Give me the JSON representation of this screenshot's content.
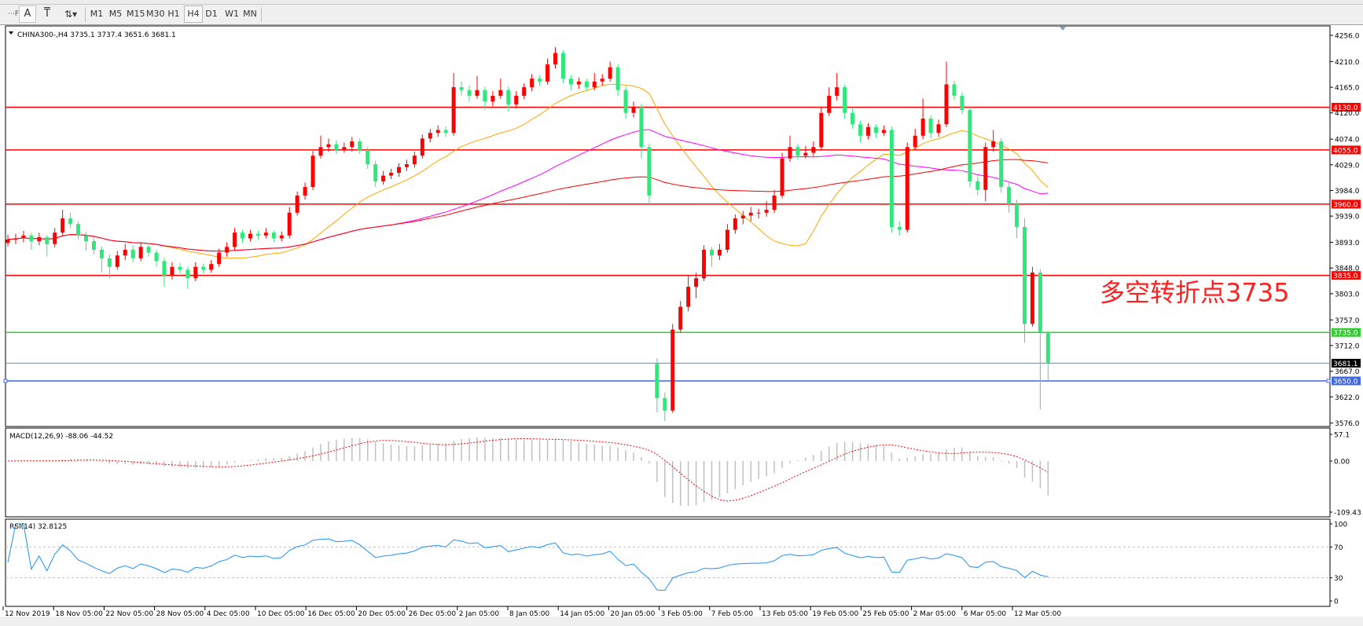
{
  "toolbar": {
    "tools": [
      {
        "name": "grid-f-icon",
        "glyph": "⋯F"
      },
      {
        "name": "text-icon",
        "glyph": "A"
      },
      {
        "name": "text-label-icon",
        "glyph": "T"
      },
      {
        "name": "arrows-icon",
        "glyph": "⇅▾"
      }
    ],
    "timeframes": [
      "M1",
      "M5",
      "M15",
      "M30",
      "H1",
      "H4",
      "D1",
      "W1",
      "MN"
    ],
    "selected_timeframe": "H4"
  },
  "chart_data": {
    "type": "candlestick",
    "title": "CHINA300-,H4  3735.1 3737.4 3651.6 3681.1",
    "symbol": "CHINA300-",
    "timeframe": "H4",
    "last_ohlc": [
      3735.1,
      3737.4,
      3651.6,
      3681.1
    ],
    "colors": {
      "bull": "#ff0000",
      "bear": "#2ee87a",
      "ma_fast": "#ffa500",
      "ma_mid": "#ff00ff",
      "ma_slow": "#ff0000"
    },
    "price_axis": {
      "range": [
        3576,
        4256
      ],
      "ticks": [
        4256.0,
        4210.0,
        4165.0,
        4120.0,
        4074.0,
        4029.0,
        3984.0,
        3939.0,
        3893.0,
        3848.0,
        3803.0,
        3757.0,
        3712.0,
        3667.0,
        3622.0,
        3576.0
      ]
    },
    "x_labels": [
      "12 Nov 2019",
      "18 Nov 05:00",
      "22 Nov 05:00",
      "28 Nov 05:00",
      "4 Dec 05:00",
      "10 Dec 05:00",
      "16 Dec 05:00",
      "20 Dec 05:00",
      "26 Dec 05:00",
      "2 Jan 05:00",
      "8 Jan 05:00",
      "14 Jan 05:00",
      "20 Jan 05:00",
      "3 Feb 05:00",
      "7 Feb 05:00",
      "13 Feb 05:00",
      "19 Feb 05:00",
      "25 Feb 05:00",
      "2 Mar 05:00",
      "6 Mar 05:00",
      "12 Mar 05:00"
    ],
    "horizontal_lines": [
      {
        "price": 4130.0,
        "label": "4130.0",
        "color": "#ff0000"
      },
      {
        "price": 4055.0,
        "label": "4055.0",
        "color": "#ff0000"
      },
      {
        "price": 3960.0,
        "label": "3960.0",
        "color": "#ff0000"
      },
      {
        "price": 3835.0,
        "label": "3835.0",
        "color": "#ff0000"
      },
      {
        "price": 3735.0,
        "label": "3735.0",
        "color": "#32cd32"
      },
      {
        "price": 3681.1,
        "label": "3681.1",
        "color": "#778899",
        "tag_color": "#000000"
      },
      {
        "price": 3650.0,
        "label": "3650.0",
        "color": "#4169e1"
      }
    ],
    "annotation": {
      "text": "多空转折点3735",
      "color": "#ff2020",
      "price": 3790
    },
    "candles": [
      [
        3892,
        3906,
        3886,
        3898
      ],
      [
        3898,
        3908,
        3890,
        3900
      ],
      [
        3900,
        3913,
        3893,
        3905
      ],
      [
        3905,
        3910,
        3880,
        3895
      ],
      [
        3895,
        3910,
        3888,
        3902
      ],
      [
        3902,
        3906,
        3868,
        3890
      ],
      [
        3890,
        3918,
        3884,
        3910
      ],
      [
        3910,
        3950,
        3905,
        3935
      ],
      [
        3935,
        3945,
        3918,
        3925
      ],
      [
        3925,
        3930,
        3898,
        3905
      ],
      [
        3905,
        3912,
        3878,
        3895
      ],
      [
        3895,
        3902,
        3872,
        3880
      ],
      [
        3880,
        3886,
        3840,
        3865
      ],
      [
        3865,
        3872,
        3830,
        3850
      ],
      [
        3850,
        3878,
        3845,
        3870
      ],
      [
        3870,
        3890,
        3862,
        3880
      ],
      [
        3880,
        3888,
        3858,
        3865
      ],
      [
        3865,
        3893,
        3860,
        3885
      ],
      [
        3885,
        3892,
        3868,
        3875
      ],
      [
        3875,
        3880,
        3850,
        3860
      ],
      [
        3860,
        3866,
        3815,
        3835
      ],
      [
        3835,
        3858,
        3828,
        3850
      ],
      [
        3850,
        3857,
        3838,
        3845
      ],
      [
        3845,
        3850,
        3812,
        3830
      ],
      [
        3830,
        3858,
        3825,
        3850
      ],
      [
        3850,
        3856,
        3838,
        3845
      ],
      [
        3845,
        3862,
        3840,
        3855
      ],
      [
        3855,
        3882,
        3850,
        3875
      ],
      [
        3875,
        3893,
        3868,
        3885
      ],
      [
        3885,
        3918,
        3880,
        3910
      ],
      [
        3910,
        3915,
        3892,
        3900
      ],
      [
        3900,
        3915,
        3895,
        3908
      ],
      [
        3908,
        3913,
        3898,
        3905
      ],
      [
        3905,
        3918,
        3900,
        3910
      ],
      [
        3910,
        3914,
        3893,
        3900
      ],
      [
        3900,
        3912,
        3895,
        3905
      ],
      [
        3905,
        3955,
        3900,
        3945
      ],
      [
        3945,
        3982,
        3940,
        3975
      ],
      [
        3975,
        3998,
        3968,
        3990
      ],
      [
        3990,
        4053,
        3985,
        4045
      ],
      [
        4045,
        4080,
        4040,
        4060
      ],
      [
        4060,
        4075,
        4052,
        4065
      ],
      [
        4065,
        4072,
        4048,
        4055
      ],
      [
        4055,
        4068,
        4050,
        4060
      ],
      [
        4060,
        4078,
        4052,
        4070
      ],
      [
        4070,
        4075,
        4048,
        4055
      ],
      [
        4055,
        4060,
        4022,
        4030
      ],
      [
        4030,
        4036,
        3990,
        4000
      ],
      [
        4000,
        4018,
        3994,
        4010
      ],
      [
        4010,
        4022,
        4004,
        4015
      ],
      [
        4015,
        4032,
        4008,
        4025
      ],
      [
        4025,
        4038,
        4018,
        4030
      ],
      [
        4030,
        4052,
        4024,
        4045
      ],
      [
        4045,
        4082,
        4040,
        4075
      ],
      [
        4075,
        4092,
        4068,
        4085
      ],
      [
        4085,
        4098,
        4078,
        4090
      ],
      [
        4090,
        4096,
        4078,
        4085
      ],
      [
        4085,
        4190,
        4080,
        4165
      ],
      [
        4165,
        4175,
        4150,
        4160
      ],
      [
        4160,
        4168,
        4140,
        4150
      ],
      [
        4150,
        4185,
        4145,
        4160
      ],
      [
        4160,
        4166,
        4125,
        4140
      ],
      [
        4140,
        4158,
        4132,
        4150
      ],
      [
        4150,
        4180,
        4145,
        4160
      ],
      [
        4160,
        4166,
        4122,
        4135
      ],
      [
        4135,
        4158,
        4128,
        4150
      ],
      [
        4150,
        4172,
        4144,
        4165
      ],
      [
        4165,
        4188,
        4158,
        4180
      ],
      [
        4180,
        4186,
        4168,
        4175
      ],
      [
        4175,
        4215,
        4170,
        4205
      ],
      [
        4205,
        4235,
        4198,
        4225
      ],
      [
        4225,
        4230,
        4172,
        4180
      ],
      [
        4180,
        4186,
        4160,
        4170
      ],
      [
        4170,
        4182,
        4162,
        4175
      ],
      [
        4175,
        4180,
        4158,
        4165
      ],
      [
        4165,
        4190,
        4160,
        4175
      ],
      [
        4175,
        4188,
        4168,
        4180
      ],
      [
        4180,
        4210,
        4175,
        4200
      ],
      [
        4200,
        4205,
        4150,
        4160
      ],
      [
        4160,
        4166,
        4110,
        4120
      ],
      [
        4120,
        4140,
        4112,
        4130
      ],
      [
        4130,
        4136,
        4040,
        4060
      ],
      [
        4060,
        4066,
        3960,
        3975
      ],
      [
        3680,
        3690,
        3595,
        3620
      ],
      [
        3620,
        3630,
        3580,
        3598
      ],
      [
        3598,
        3750,
        3594,
        3740
      ],
      [
        3740,
        3790,
        3735,
        3780
      ],
      [
        3780,
        3835,
        3772,
        3815
      ],
      [
        3815,
        3840,
        3795,
        3830
      ],
      [
        3830,
        3888,
        3825,
        3880
      ],
      [
        3880,
        3885,
        3850,
        3870
      ],
      [
        3870,
        3890,
        3862,
        3880
      ],
      [
        3880,
        3925,
        3875,
        3915
      ],
      [
        3915,
        3942,
        3908,
        3935
      ],
      [
        3935,
        3948,
        3925,
        3940
      ],
      [
        3940,
        3955,
        3930,
        3945
      ],
      [
        3945,
        3952,
        3935,
        3945
      ],
      [
        3945,
        3965,
        3938,
        3950
      ],
      [
        3950,
        3985,
        3944,
        3975
      ],
      [
        3975,
        4050,
        3970,
        4040
      ],
      [
        4040,
        4080,
        4034,
        4060
      ],
      [
        4060,
        4066,
        4038,
        4045
      ],
      [
        4045,
        4062,
        4040,
        4050
      ],
      [
        4050,
        4070,
        4044,
        4060
      ],
      [
        4060,
        4130,
        4055,
        4120
      ],
      [
        4120,
        4165,
        4115,
        4150
      ],
      [
        4150,
        4190,
        4142,
        4165
      ],
      [
        4165,
        4170,
        4110,
        4120
      ],
      [
        4120,
        4128,
        4092,
        4100
      ],
      [
        4100,
        4106,
        4068,
        4080
      ],
      [
        4080,
        4102,
        4074,
        4095
      ],
      [
        4095,
        4100,
        4076,
        4085
      ],
      [
        4085,
        4098,
        4080,
        4090
      ],
      [
        4090,
        4096,
        3910,
        3920
      ],
      [
        3920,
        3930,
        3905,
        3915
      ],
      [
        3915,
        4068,
        3910,
        4060
      ],
      [
        4060,
        4092,
        4054,
        4080
      ],
      [
        4080,
        4145,
        4074,
        4110
      ],
      [
        4110,
        4116,
        4075,
        4085
      ],
      [
        4085,
        4108,
        4078,
        4100
      ],
      [
        4100,
        4210,
        4095,
        4170
      ],
      [
        4170,
        4176,
        4142,
        4150
      ],
      [
        4150,
        4156,
        4118,
        4125
      ],
      [
        4125,
        4130,
        3990,
        4000
      ],
      [
        4000,
        4008,
        3975,
        3985
      ],
      [
        3985,
        4068,
        3965,
        4060
      ],
      [
        4060,
        4090,
        4052,
        4070
      ],
      [
        4070,
        4076,
        3980,
        3990
      ],
      [
        3990,
        3998,
        3945,
        3960
      ],
      [
        3960,
        3968,
        3900,
        3920
      ],
      [
        3920,
        3935,
        3717,
        3750
      ],
      [
        3750,
        3850,
        3745,
        3840
      ],
      [
        3840,
        3846,
        3600,
        3735
      ],
      [
        3735.1,
        3737.4,
        3651.6,
        3681.1
      ]
    ],
    "macd": {
      "label": "MACD(12,26,9) -88.06 -44.52",
      "range": [
        -109.43,
        57.1
      ],
      "ticks": [
        "57.1",
        "0.00",
        "-109.43"
      ],
      "histogram_color": "#c0c0c0",
      "signal_color": "#ff0000"
    },
    "rsi": {
      "label": "RSI(14) 32.8125",
      "range": [
        0,
        100
      ],
      "levels": [
        70,
        30
      ],
      "ticks": [
        "100",
        "70",
        "30",
        "0"
      ],
      "color": "#1e90ff"
    }
  }
}
